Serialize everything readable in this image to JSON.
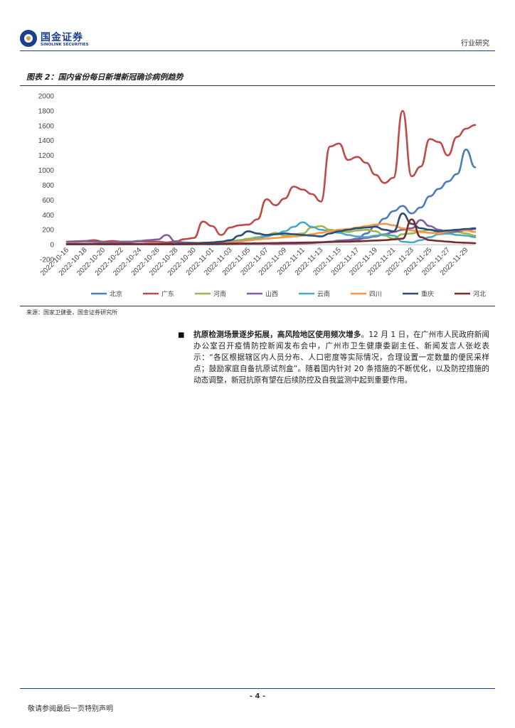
{
  "header": {
    "logo_cn": "国金证券",
    "logo_en": "SINOLINK SECURITIES",
    "section": "行业研究"
  },
  "figure": {
    "title": "图表 2：国内省份每日新增新冠确诊病例趋势",
    "source": "来源：国家卫健委，国金证券研究所"
  },
  "chart_data": {
    "type": "line",
    "title": "国内省份每日新增新冠确诊病例趋势",
    "xlabel": "",
    "ylabel": "",
    "ylim": [
      -200,
      2000
    ],
    "yticks": [
      "2000",
      "1800",
      "1600",
      "1400",
      "1200",
      "1000",
      "800",
      "600",
      "400",
      "200",
      "0",
      "-200"
    ],
    "x_tick_labels": [
      "2022-10-16",
      "2022-10-18",
      "2022-10-20",
      "2022-10-22",
      "2022-10-24",
      "2022-10-26",
      "2022-10-28",
      "2022-10-30",
      "2022-11-01",
      "2022-11-03",
      "2022-11-05",
      "2022-11-07",
      "2022-11-09",
      "2022-11-11",
      "2022-11-13",
      "2022-11-15",
      "2022-11-17",
      "2022-11-19",
      "2022-11-21",
      "2022-11-23",
      "2022-11-25",
      "2022-11-27",
      "2022-11-29"
    ],
    "x_start": "2022-10-16",
    "x_count": 46,
    "legend_position": "bottom",
    "series": [
      {
        "name": "北京",
        "color": "#4a7ebb",
        "values": [
          5,
          5,
          6,
          8,
          8,
          6,
          5,
          6,
          8,
          6,
          5,
          5,
          4,
          5,
          6,
          5,
          4,
          5,
          6,
          8,
          8,
          10,
          12,
          14,
          12,
          18,
          20,
          25,
          30,
          40,
          55,
          60,
          80,
          150,
          250,
          350,
          450,
          520,
          420,
          500,
          650,
          750,
          850,
          950,
          1280,
          1040
        ]
      },
      {
        "name": "广东",
        "color": "#be4b48",
        "values": [
          40,
          45,
          50,
          60,
          40,
          50,
          40,
          40,
          45,
          40,
          40,
          30,
          45,
          75,
          90,
          310,
          250,
          130,
          230,
          260,
          270,
          340,
          610,
          530,
          620,
          780,
          740,
          680,
          580,
          1320,
          1360,
          1140,
          1180,
          1100,
          940,
          830,
          900,
          1800,
          920,
          1050,
          1420,
          1380,
          1200,
          1450,
          1560,
          1610
        ]
      },
      {
        "name": "河南",
        "color": "#98b954",
        "values": [
          10,
          10,
          12,
          10,
          8,
          10,
          8,
          6,
          8,
          10,
          8,
          10,
          12,
          15,
          20,
          25,
          30,
          40,
          50,
          60,
          80,
          100,
          130,
          160,
          120,
          140,
          150,
          230,
          250,
          200,
          180,
          170,
          190,
          200,
          180,
          120,
          80,
          140,
          150,
          180,
          200,
          160,
          150,
          170,
          150,
          120
        ]
      },
      {
        "name": "山西",
        "color": "#7d60a0",
        "values": [
          40,
          40,
          45,
          40,
          35,
          30,
          35,
          40,
          50,
          60,
          70,
          130,
          40,
          30,
          25,
          20,
          15,
          10,
          8,
          10,
          10,
          8,
          10,
          8,
          10,
          12,
          15,
          20,
          30,
          40,
          50,
          60,
          70,
          90,
          110,
          140,
          170,
          200,
          220,
          330,
          250,
          200,
          170,
          180,
          190,
          210
        ]
      },
      {
        "name": "云南",
        "color": "#46aac5",
        "values": [
          5,
          5,
          6,
          8,
          10,
          12,
          10,
          8,
          6,
          5,
          8,
          10,
          12,
          15,
          18,
          20,
          25,
          30,
          40,
          50,
          60,
          80,
          110,
          140,
          180,
          240,
          300,
          240,
          200,
          180,
          160,
          130,
          110,
          100,
          120,
          140,
          120,
          40,
          30,
          60,
          100,
          140,
          150,
          130,
          120,
          100
        ]
      },
      {
        "name": "四川",
        "color": "#f79646",
        "values": [
          10,
          12,
          12,
          10,
          12,
          15,
          14,
          12,
          10,
          8,
          10,
          12,
          14,
          15,
          18,
          20,
          22,
          25,
          30,
          40,
          55,
          70,
          80,
          90,
          100,
          110,
          120,
          140,
          160,
          180,
          200,
          210,
          230,
          250,
          270,
          280,
          260,
          220,
          190,
          170,
          160,
          150,
          180,
          200,
          190,
          170
        ]
      },
      {
        "name": "重庆",
        "color": "#2c4d75",
        "values": [
          10,
          10,
          10,
          10,
          10,
          12,
          12,
          12,
          10,
          10,
          10,
          12,
          14,
          16,
          20,
          25,
          30,
          40,
          60,
          120,
          180,
          150,
          130,
          140,
          150,
          140,
          130,
          120,
          110,
          150,
          180,
          200,
          220,
          230,
          240,
          200,
          180,
          420,
          280,
          220,
          200,
          180,
          190,
          200,
          210,
          220
        ]
      },
      {
        "name": "河北",
        "color": "#772c2a",
        "values": [
          5,
          5,
          6,
          6,
          5,
          5,
          6,
          6,
          6,
          6,
          5,
          5,
          6,
          6,
          8,
          10,
          10,
          12,
          14,
          15,
          16,
          18,
          20,
          22,
          24,
          26,
          28,
          30,
          32,
          35,
          38,
          40,
          45,
          50,
          55,
          60,
          70,
          80,
          340,
          100,
          60,
          50,
          40,
          30,
          25,
          20
        ]
      }
    ]
  },
  "body": {
    "bullet": "■",
    "bold_lead": "抗原检测场景逐步拓展，高风险地区使用频次增多",
    "text": "。12 月 1 日，在广州市人民政府新闻办公室召开疫情防控新闻发布会中，广州市卫生健康委副主任、新闻发言人张屹表示：“各区根据辖区内人员分布、人口密度等实际情况，合理设置一定数量的便民采样点；鼓励家庭自备抗原试剂盒”。随着国内针对 20 条措施的不断优化，以及防控措施的动态调整，新冠抗原有望在后续防控及自我监测中起到重要作用。"
  },
  "footer": {
    "page": "- 4 -",
    "disclaimer": "敬请参阅最后一页特别声明"
  }
}
